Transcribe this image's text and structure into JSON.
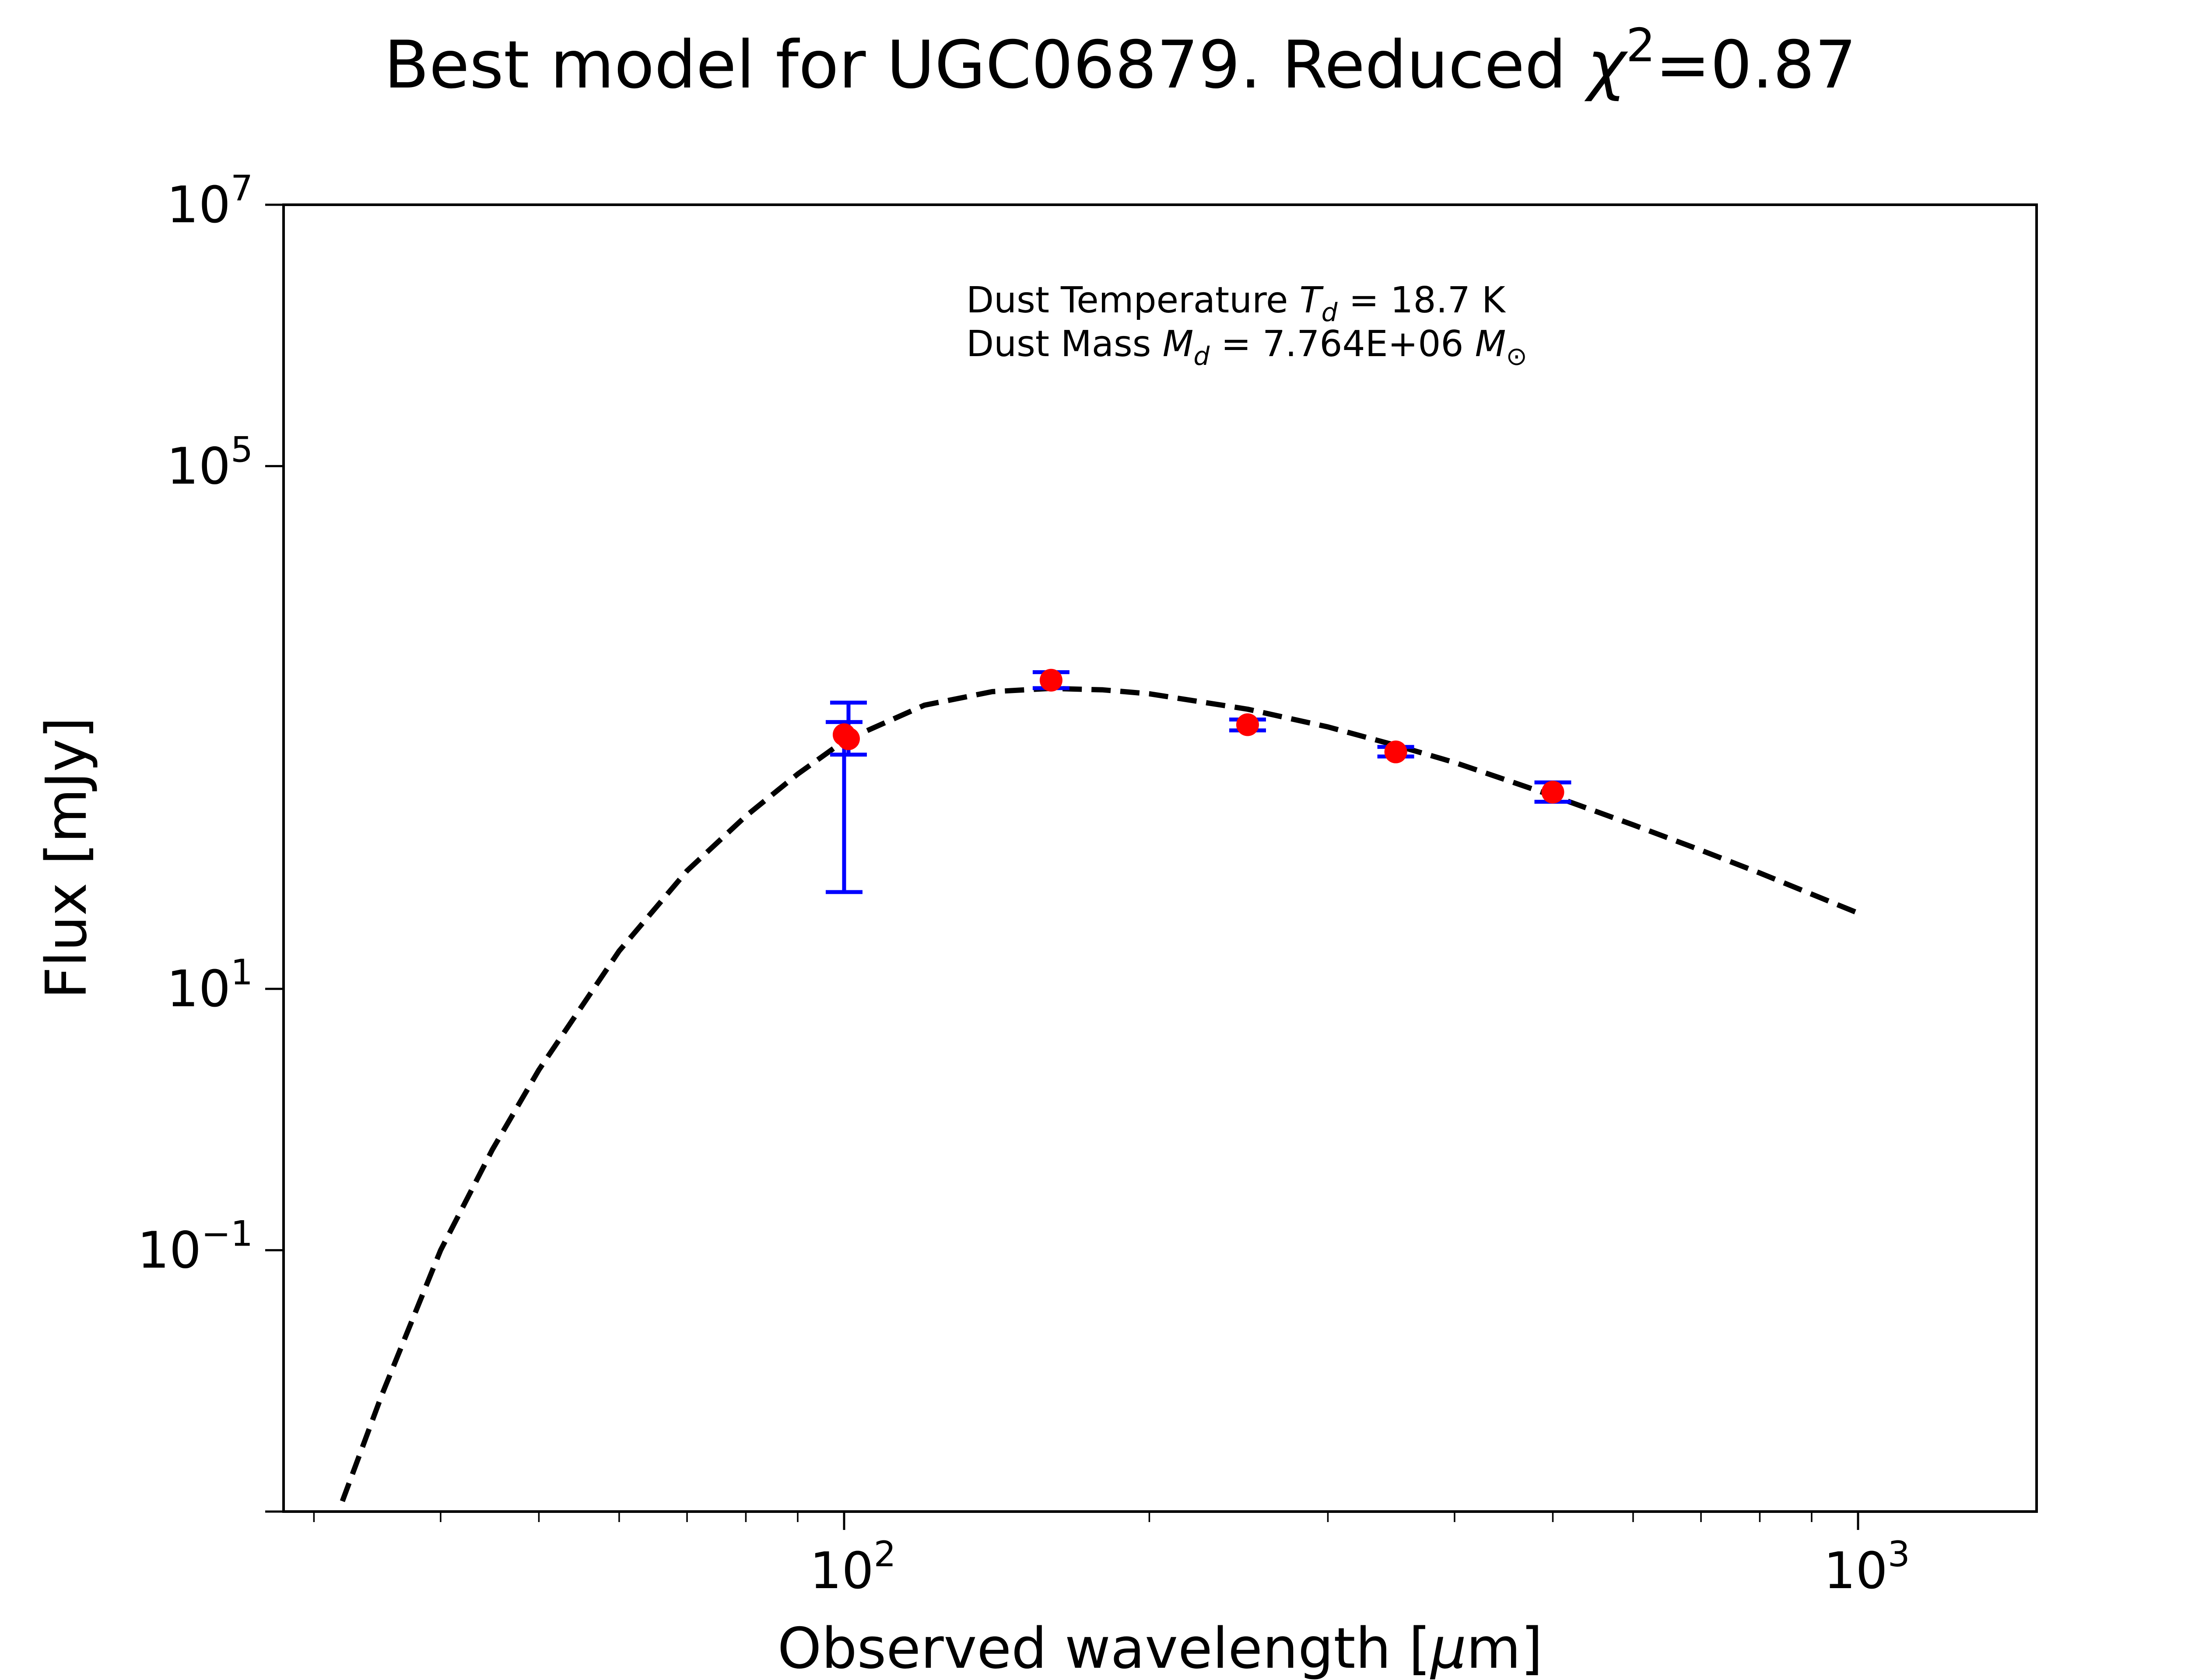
{
  "chart_data": {
    "type": "scatter",
    "title": "Best model for UGC06879. Reduced χ²=0.87",
    "title_parts": {
      "main": "Best model for UGC06879. Reduced ",
      "chi": "χ",
      "exp": "2",
      "value": "=0.87"
    },
    "xlabel": "Observed wavelength [μm]",
    "xlabel_parts": {
      "main": "Observed wavelength [",
      "mu": "μ",
      "unit": "m]"
    },
    "ylabel": "Flux [mJy]",
    "x_scale": "log",
    "y_scale": "log",
    "xlim": [
      28,
      1500
    ],
    "ylim": [
      0.001,
      10000000
    ],
    "grid": false,
    "x_ticks": [
      {
        "value": 100,
        "base": "10",
        "exp": "2"
      },
      {
        "value": 1000,
        "base": "10",
        "exp": "3"
      }
    ],
    "y_ticks": [
      {
        "value": 0.1,
        "base": "10",
        "exp": "−1"
      },
      {
        "value": 10,
        "base": "10",
        "exp": "1"
      },
      {
        "value": 100000,
        "base": "10",
        "exp": "5"
      },
      {
        "value": 10000000,
        "base": "10",
        "exp": "7"
      }
    ],
    "annotation": {
      "line1": {
        "prefix": "Dust Temperature ",
        "sym": "T",
        "sub": "d",
        "value": " = 18.7 K"
      },
      "line2": {
        "prefix": "Dust Mass ",
        "sym": "M",
        "sub": "d",
        "value": " = 7.764E+06 ",
        "unit": "M",
        "unit_sub": "⊙"
      }
    },
    "series": [
      {
        "kind": "observed",
        "color": "#ff0000",
        "errorbar_color": "#0000ff",
        "points": [
          {
            "x": 100,
            "y": 880,
            "yerr_low": 55,
            "yerr_high": 1100
          },
          {
            "x": 101,
            "y": 820,
            "yerr_low": 620,
            "yerr_high": 1550
          },
          {
            "x": 160,
            "y": 2300,
            "yerr_low": 2000,
            "yerr_high": 2650
          },
          {
            "x": 250,
            "y": 1050,
            "yerr_low": 950,
            "yerr_high": 1150
          },
          {
            "x": 350,
            "y": 650,
            "yerr_low": 600,
            "yerr_high": 710
          },
          {
            "x": 500,
            "y": 320,
            "yerr_low": 270,
            "yerr_high": 380
          }
        ]
      },
      {
        "kind": "model",
        "style": "dashed",
        "color": "#000000",
        "model": {
          "type": "modified_blackbody",
          "T": 18.7,
          "beta": 2.0,
          "peak_x": 170,
          "peak_y": 1950
        },
        "x": [
          32,
          35,
          40,
          45,
          50,
          60,
          70,
          80,
          90,
          100,
          120,
          140,
          160,
          180,
          200,
          250,
          300,
          350,
          400,
          500,
          600,
          700,
          800,
          1000
        ],
        "y": [
          0.0012,
          0.0078,
          0.1,
          0.59,
          2.4,
          19.5,
          80,
          210,
          440,
          790,
          1480,
          1880,
          1990,
          1940,
          1810,
          1380,
          1010,
          730,
          540,
          300,
          180,
          115,
          77,
          38
        ]
      }
    ]
  }
}
